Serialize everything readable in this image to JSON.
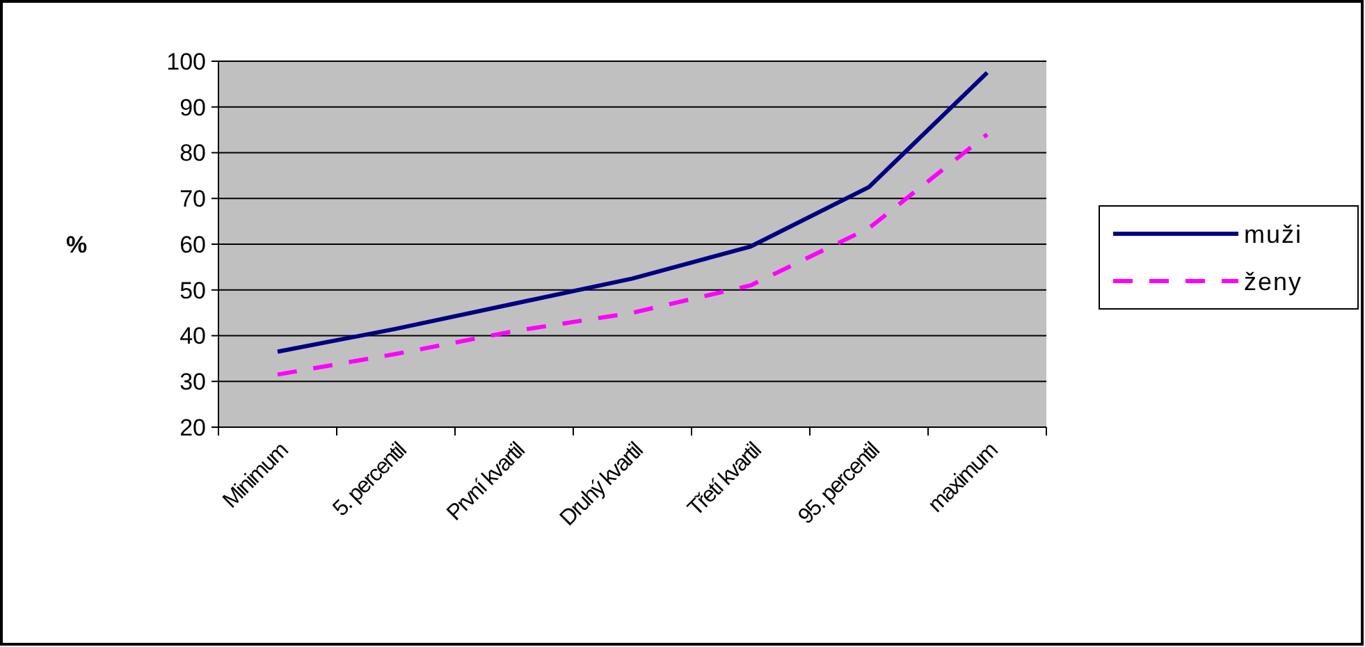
{
  "chart_data": {
    "type": "line",
    "ylabel": "%",
    "categories": [
      "Minimum",
      "5. percentil",
      "První kvartil",
      "Druhý kvartil",
      "Třetí kvartil",
      "95. percentil",
      "maximum"
    ],
    "series": [
      {
        "name": "muži",
        "color": "#000080",
        "line_style": "solid",
        "values": [
          36.5,
          41.5,
          47,
          52.5,
          59.5,
          72.5,
          97.5
        ]
      },
      {
        "name": "ženy",
        "color": "#ff00ff",
        "line_style": "dashed",
        "values": [
          31.5,
          36,
          41,
          45,
          51,
          63.5,
          84
        ]
      }
    ],
    "ylim": [
      20,
      100
    ],
    "yticks": [
      20,
      30,
      40,
      50,
      60,
      70,
      80,
      90,
      100
    ],
    "grid": "y",
    "legend": "right",
    "marker": "none"
  }
}
